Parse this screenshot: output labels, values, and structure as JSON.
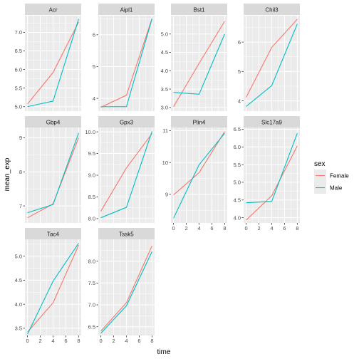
{
  "chart_data": {
    "type": "line",
    "x_title": "time",
    "y_title": "mean_exp",
    "x_ticks": [
      0,
      2,
      4,
      6,
      8
    ],
    "x_range": [
      -0.4,
      8.4
    ],
    "facet_columns": 4,
    "scales": "free_y",
    "legend": {
      "title": "sex",
      "placement": "right",
      "entries": [
        {
          "label": "Female",
          "color": "#F8766D"
        },
        {
          "label": "Male",
          "color": "#00BFC4"
        }
      ]
    },
    "panels": [
      {
        "title": "Acr",
        "ylim": [
          4.88,
          7.45
        ],
        "yticks": [
          5.0,
          5.5,
          6.0,
          6.5,
          7.0
        ],
        "tick_labels": [
          "5.0",
          "5.5",
          "6.0",
          "6.5",
          "7.0"
        ],
        "series": [
          {
            "name": "Female",
            "x": [
              0,
              4,
              8
            ],
            "y": [
              5.07,
              5.92,
              7.28
            ]
          },
          {
            "name": "Male",
            "x": [
              0,
              4,
              8
            ],
            "y": [
              5.0,
              5.15,
              7.36
            ]
          }
        ]
      },
      {
        "title": "Aipl1",
        "ylim": [
          3.6,
          6.6
        ],
        "yticks": [
          4,
          5,
          6
        ],
        "tick_labels": [
          "4",
          "5",
          "6"
        ],
        "series": [
          {
            "name": "Female",
            "x": [
              0,
              4,
              8
            ],
            "y": [
              3.72,
              4.1,
              6.51
            ]
          },
          {
            "name": "Male",
            "x": [
              0,
              4,
              8
            ],
            "y": [
              3.74,
              3.74,
              6.5
            ]
          }
        ]
      },
      {
        "title": "Bst1",
        "ylim": [
          2.9,
          5.5
        ],
        "yticks": [
          3.0,
          3.5,
          4.0,
          4.5,
          5.0
        ],
        "tick_labels": [
          "3.0",
          "3.5",
          "4.0",
          "4.5",
          "5.0"
        ],
        "series": [
          {
            "name": "Female",
            "x": [
              0,
              4,
              8
            ],
            "y": [
              3.02,
              4.2,
              5.35
            ]
          },
          {
            "name": "Male",
            "x": [
              0,
              4,
              8
            ],
            "y": [
              3.41,
              3.36,
              5.0
            ]
          }
        ]
      },
      {
        "title": "Chil3",
        "ylim": [
          3.65,
          6.9
        ],
        "yticks": [
          4,
          5,
          6
        ],
        "tick_labels": [
          "4",
          "5",
          "6"
        ],
        "series": [
          {
            "name": "Female",
            "x": [
              0,
              4,
              8
            ],
            "y": [
              4.12,
              5.82,
              6.78
            ]
          },
          {
            "name": "Male",
            "x": [
              0,
              4,
              8
            ],
            "y": [
              3.81,
              4.52,
              6.62
            ]
          }
        ]
      },
      {
        "title": "Gbp4",
        "ylim": [
          6.5,
          9.3
        ],
        "yticks": [
          7,
          8,
          9
        ],
        "tick_labels": [
          "7",
          "8",
          "9"
        ],
        "series": [
          {
            "name": "Female",
            "x": [
              0,
              4,
              8
            ],
            "y": [
              6.65,
              7.06,
              9.0
            ]
          },
          {
            "name": "Male",
            "x": [
              0,
              4,
              8
            ],
            "y": [
              6.8,
              7.04,
              9.14
            ]
          }
        ]
      },
      {
        "title": "Gpx3",
        "ylim": [
          7.9,
          10.1
        ],
        "yticks": [
          8.0,
          8.5,
          9.0,
          9.5,
          10.0
        ],
        "tick_labels": [
          "8.0",
          "8.5",
          "9.0",
          "9.5",
          "10.0"
        ],
        "series": [
          {
            "name": "Female",
            "x": [
              0,
              4,
              8
            ],
            "y": [
              8.17,
              9.17,
              9.96
            ]
          },
          {
            "name": "Male",
            "x": [
              0,
              4,
              8
            ],
            "y": [
              8.02,
              8.26,
              10.01
            ]
          }
        ]
      },
      {
        "title": "Plin4",
        "ylim": [
          8.1,
          11.1
        ],
        "yticks": [
          9,
          10,
          11
        ],
        "tick_labels": [
          "9",
          "10",
          "11"
        ],
        "series": [
          {
            "name": "Female",
            "x": [
              0,
              4,
              8
            ],
            "y": [
              8.98,
              9.68,
              10.97
            ]
          },
          {
            "name": "Male",
            "x": [
              0,
              4,
              8
            ],
            "y": [
              8.25,
              9.93,
              10.92
            ]
          }
        ]
      },
      {
        "title": "Slc17a9",
        "ylim": [
          3.85,
          6.55
        ],
        "yticks": [
          4.0,
          4.5,
          5.0,
          5.5,
          6.0,
          6.5
        ],
        "tick_labels": [
          "4.0",
          "4.5",
          "5.0",
          "5.5",
          "6.0",
          "6.5"
        ],
        "series": [
          {
            "name": "Female",
            "x": [
              0,
              4,
              8
            ],
            "y": [
              3.93,
              4.62,
              6.03
            ]
          },
          {
            "name": "Male",
            "x": [
              0,
              4,
              8
            ],
            "y": [
              4.42,
              4.46,
              6.39
            ]
          }
        ]
      },
      {
        "title": "Tac4",
        "ylim": [
          3.35,
          5.35
        ],
        "yticks": [
          3.5,
          4.0,
          4.5,
          5.0
        ],
        "tick_labels": [
          "3.5",
          "4.0",
          "4.5",
          "5.0"
        ],
        "series": [
          {
            "name": "Female",
            "x": [
              0,
              4,
              8
            ],
            "y": [
              3.42,
              4.03,
              5.23
            ]
          },
          {
            "name": "Male",
            "x": [
              0,
              4,
              8
            ],
            "y": [
              3.38,
              4.48,
              5.27
            ]
          }
        ]
      },
      {
        "title": "Tssk5",
        "ylim": [
          6.3,
          8.5
        ],
        "yticks": [
          6.5,
          7.0,
          7.5,
          8.0
        ],
        "tick_labels": [
          "6.5",
          "7.0",
          "7.5",
          "8.0"
        ],
        "series": [
          {
            "name": "Female",
            "x": [
              0,
              4,
              8
            ],
            "y": [
              6.4,
              7.05,
              8.35
            ]
          },
          {
            "name": "Male",
            "x": [
              0,
              4,
              8
            ],
            "y": [
              6.35,
              6.98,
              8.22
            ]
          }
        ]
      }
    ],
    "grid": true
  }
}
